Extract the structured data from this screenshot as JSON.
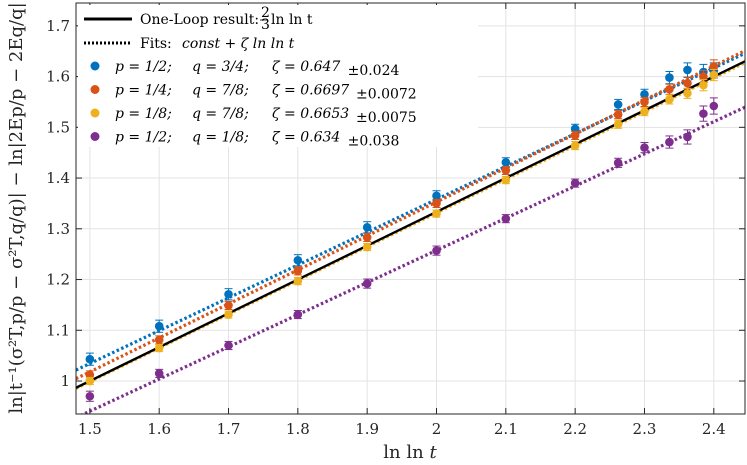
{
  "chart_data": {
    "type": "scatter",
    "xlabel": "ln ln t",
    "ylabel": "ln|t⁻¹(σ²T,p/p − σ²T,q/q)| − ln|2Ep/p − 2Eq/q|",
    "xlim": [
      1.48,
      2.445
    ],
    "ylim": [
      0.935,
      1.745
    ],
    "xticks": [
      1.5,
      1.6,
      1.7,
      1.8,
      1.9,
      2,
      2.1,
      2.2,
      2.3,
      2.4
    ],
    "xtick_labels": [
      "1.5",
      "1.6",
      "1.7",
      "1.8",
      "1.9",
      "2",
      "2.1",
      "2.2",
      "2.3",
      "2.4"
    ],
    "yticks": [
      1,
      1.1,
      1.2,
      1.3,
      1.4,
      1.5,
      1.6,
      1.7
    ],
    "ytick_labels": [
      "1",
      "1.1",
      "1.2",
      "1.3",
      "1.4",
      "1.5",
      "1.6",
      "1.7"
    ],
    "grid": true,
    "legend_position": "top-left",
    "one_loop": {
      "label_text": "One-Loop result:",
      "label_math": "(2/3) ln ln t",
      "frac_num": "2",
      "frac_den": "3",
      "tail": "ln ln t",
      "slope": 0.6667,
      "intercept": 0.0,
      "color": "#000000"
    },
    "fits_label_text": "Fits:",
    "fits_label_math": "const + ζ ln ln t",
    "series": [
      {
        "name": "p = 1/2; q = 3/4; ζ = 0.647±0.024",
        "p": "p = 1/2;",
        "q": "q = 3/4;",
        "zeta": "ζ = 0.647",
        "err": "±0.024",
        "color": "#0072BD",
        "fit_slope": 0.647,
        "fit_intercept": 0.064,
        "x": [
          1.5,
          1.6,
          1.7,
          1.8,
          1.9,
          2.0,
          2.1,
          2.2,
          2.262,
          2.3,
          2.336,
          2.362,
          2.385,
          2.4
        ],
        "y": [
          1.043,
          1.108,
          1.171,
          1.238,
          1.303,
          1.365,
          1.431,
          1.497,
          1.545,
          1.565,
          1.598,
          1.613,
          1.609,
          1.612
        ],
        "err_y": [
          0.012,
          0.012,
          0.011,
          0.011,
          0.011,
          0.01,
          0.009,
          0.009,
          0.01,
          0.01,
          0.012,
          0.014,
          0.015,
          0.015
        ]
      },
      {
        "name": "p = 1/4; q = 7/8; ζ = 0.6697±0.0072",
        "p": "p = 1/4;",
        "q": "q = 7/8;",
        "zeta": "ζ = 0.6697",
        "err": "±0.0072",
        "color": "#D95319",
        "fit_slope": 0.6697,
        "fit_intercept": 0.0135,
        "x": [
          1.5,
          1.6,
          1.7,
          1.8,
          1.9,
          2.0,
          2.1,
          2.2,
          2.262,
          2.3,
          2.336,
          2.362,
          2.385,
          2.4
        ],
        "y": [
          1.012,
          1.081,
          1.149,
          1.217,
          1.283,
          1.35,
          1.415,
          1.484,
          1.525,
          1.55,
          1.575,
          1.587,
          1.6,
          1.62
        ],
        "err_y": [
          0.008,
          0.008,
          0.008,
          0.008,
          0.008,
          0.008,
          0.008,
          0.008,
          0.008,
          0.009,
          0.01,
          0.011,
          0.012,
          0.013
        ]
      },
      {
        "name": "p = 1/8; q = 7/8; ζ = 0.6653±0.0075",
        "p": "p = 1/8;",
        "q": "q = 7/8;",
        "zeta": "ζ = 0.6653",
        "err": "±0.0075",
        "color": "#EDB120",
        "fit_slope": 0.6653,
        "fit_intercept": 0.0008,
        "x": [
          1.5,
          1.6,
          1.7,
          1.8,
          1.9,
          2.0,
          2.1,
          2.2,
          2.262,
          2.3,
          2.336,
          2.362,
          2.385,
          2.4
        ],
        "y": [
          1.0,
          1.065,
          1.131,
          1.197,
          1.264,
          1.33,
          1.396,
          1.464,
          1.506,
          1.531,
          1.555,
          1.567,
          1.583,
          1.603
        ],
        "err_y": [
          0.007,
          0.007,
          0.007,
          0.007,
          0.007,
          0.007,
          0.007,
          0.008,
          0.008,
          0.008,
          0.009,
          0.01,
          0.011,
          0.011
        ]
      },
      {
        "name": "p = 1/2; q = 1/8; ζ = 0.634±0.038",
        "p": "p = 1/2;",
        "q": "q = 1/8;",
        "zeta": "ζ = 0.634",
        "err": "±0.038",
        "color": "#7E2F8E",
        "fit_slope": 0.634,
        "fit_intercept": -0.0105,
        "x": [
          1.5,
          1.6,
          1.7,
          1.8,
          1.9,
          2.0,
          2.1,
          2.2,
          2.262,
          2.3,
          2.336,
          2.362,
          2.385,
          2.4
        ],
        "y": [
          0.97,
          1.015,
          1.07,
          1.131,
          1.192,
          1.257,
          1.32,
          1.39,
          1.43,
          1.46,
          1.471,
          1.481,
          1.527,
          1.542
        ],
        "err_y": [
          0.01,
          0.008,
          0.008,
          0.008,
          0.009,
          0.009,
          0.008,
          0.008,
          0.009,
          0.01,
          0.012,
          0.014,
          0.015,
          0.016
        ]
      }
    ]
  }
}
